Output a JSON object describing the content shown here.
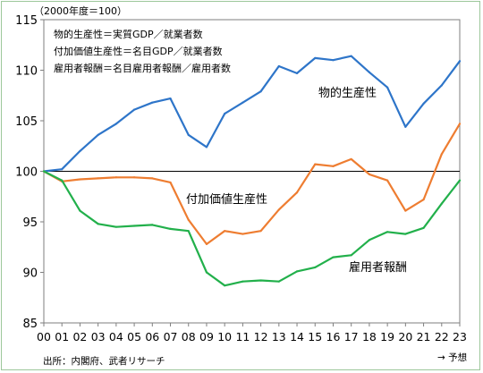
{
  "chart_data": {
    "type": "line",
    "unit_label": "（2000年度＝100）",
    "definitions": [
      "物的生産性＝実質GDP／就業者数",
      "付加価値生産性＝名目GDP／就業者数",
      "雇用者報酬＝名目雇用者報酬／雇用者数"
    ],
    "x": [
      "00",
      "01",
      "02",
      "03",
      "04",
      "05",
      "06",
      "07",
      "08",
      "09",
      "10",
      "11",
      "12",
      "13",
      "14",
      "15",
      "16",
      "17",
      "18",
      "19",
      "20",
      "21",
      "22",
      "23"
    ],
    "ylim": [
      85,
      115
    ],
    "yticks": [
      85,
      90,
      95,
      100,
      105,
      110,
      115
    ],
    "reference_line": 100,
    "series": [
      {
        "name": "物的生産性",
        "color": "#2e75c9",
        "values": [
          100.0,
          100.2,
          102.0,
          103.6,
          104.7,
          106.1,
          106.8,
          107.2,
          103.6,
          102.4,
          105.7,
          106.8,
          107.9,
          110.4,
          109.7,
          111.2,
          111.0,
          111.4,
          109.8,
          108.3,
          104.4,
          106.7,
          108.5,
          110.9
        ]
      },
      {
        "name": "付加価値生産性",
        "color": "#ee7d31",
        "values": [
          100.0,
          99.0,
          99.2,
          99.3,
          99.4,
          99.4,
          99.3,
          98.9,
          95.2,
          92.8,
          94.1,
          93.8,
          94.1,
          96.2,
          97.9,
          100.7,
          100.5,
          101.2,
          99.7,
          99.1,
          96.1,
          97.2,
          101.7,
          104.7
        ]
      },
      {
        "name": "雇用者報酬",
        "color": "#22b04b",
        "values": [
          100.0,
          99.1,
          96.1,
          94.8,
          94.5,
          94.6,
          94.7,
          94.3,
          94.1,
          90.0,
          88.7,
          89.1,
          89.2,
          89.1,
          90.1,
          90.5,
          91.5,
          91.7,
          93.2,
          94.0,
          93.8,
          94.4,
          96.8,
          99.1
        ]
      }
    ],
    "series_labels": [
      "物的生産性",
      "付加価値生産性",
      "雇用者報酬"
    ],
    "source": "出所：内閣府、武者リサーチ",
    "forecast_note": "→ 予想"
  }
}
